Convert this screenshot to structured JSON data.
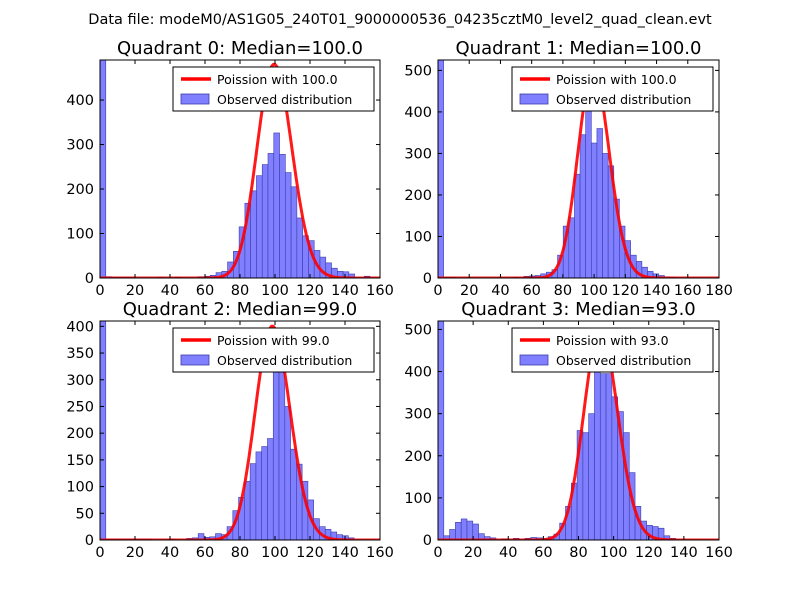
{
  "figure": {
    "suptitle": "Data file: modeM0/AS1G05_240T01_9000000536_04235cztM0_level2_quad_clean.evt"
  },
  "style": {
    "bar_fill": "#7f7fff",
    "bar_edge": "#3c3caa",
    "poisson_color": "#ff0000"
  },
  "chart_data": [
    {
      "type": "bar",
      "title": "Quadrant 0: Median=100.0",
      "xlim": [
        0,
        160
      ],
      "ylim": [
        0,
        490
      ],
      "xticks": [
        0,
        20,
        40,
        60,
        80,
        100,
        120,
        140,
        160
      ],
      "yticks": [
        0,
        100,
        200,
        300,
        400
      ],
      "bin_width": 3.3,
      "bins": [
        [
          0,
          490
        ],
        [
          3.3,
          3
        ],
        [
          6.6,
          2
        ],
        [
          9.9,
          2
        ],
        [
          13.2,
          2
        ],
        [
          16.5,
          2
        ],
        [
          33,
          2
        ],
        [
          43,
          2
        ],
        [
          56,
          3
        ],
        [
          60,
          4
        ],
        [
          63,
          6
        ],
        [
          66.3,
          12
        ],
        [
          69.6,
          15
        ],
        [
          72.9,
          36
        ],
        [
          76.2,
          60
        ],
        [
          79.5,
          115
        ],
        [
          82.8,
          168
        ],
        [
          86.1,
          196
        ],
        [
          89.4,
          230
        ],
        [
          92.7,
          255
        ],
        [
          96,
          280
        ],
        [
          99.3,
          326
        ],
        [
          102.6,
          278
        ],
        [
          105.9,
          237
        ],
        [
          109.2,
          205
        ],
        [
          112.5,
          135
        ],
        [
          115.8,
          95
        ],
        [
          119.1,
          84
        ],
        [
          122.4,
          62
        ],
        [
          125.7,
          47
        ],
        [
          129,
          34
        ],
        [
          132.3,
          22
        ],
        [
          135.6,
          15
        ],
        [
          138.9,
          14
        ],
        [
          142.2,
          9
        ],
        [
          151,
          4
        ]
      ],
      "legend": {
        "poisson": "Poission with 100.0",
        "observed": "Observed distribution",
        "location": "upper right"
      },
      "poisson": {
        "mean": 100.0,
        "scale": 480
      }
    },
    {
      "type": "bar",
      "title": "Quadrant 1: Median=100.0",
      "xlim": [
        0,
        180
      ],
      "ylim": [
        0,
        525
      ],
      "xticks": [
        0,
        20,
        40,
        60,
        80,
        100,
        120,
        140,
        160,
        180
      ],
      "yticks": [
        0,
        100,
        200,
        300,
        400,
        500
      ],
      "bin_width": 3.6,
      "bins": [
        [
          0,
          525
        ],
        [
          3.6,
          2
        ],
        [
          7.2,
          2
        ],
        [
          48,
          2
        ],
        [
          55,
          4
        ],
        [
          58.6,
          5
        ],
        [
          62.2,
          6
        ],
        [
          65.8,
          10
        ],
        [
          69.4,
          14
        ],
        [
          73,
          20
        ],
        [
          76.6,
          55
        ],
        [
          80.2,
          125
        ],
        [
          83.8,
          145
        ],
        [
          87.4,
          250
        ],
        [
          91,
          345
        ],
        [
          94.6,
          420
        ],
        [
          98.2,
          325
        ],
        [
          101.8,
          360
        ],
        [
          105.4,
          300
        ],
        [
          109,
          270
        ],
        [
          112.6,
          190
        ],
        [
          116.2,
          125
        ],
        [
          119.8,
          90
        ],
        [
          123.4,
          55
        ],
        [
          127,
          40
        ],
        [
          130.6,
          26
        ],
        [
          134.2,
          16
        ],
        [
          137.8,
          10
        ],
        [
          141.4,
          6
        ],
        [
          145,
          3
        ],
        [
          148.6,
          2
        ]
      ],
      "legend": {
        "poisson": "Poission with 100.0",
        "observed": "Observed distribution",
        "location": "upper right"
      },
      "poisson": {
        "mean": 100.0,
        "scale": 500
      }
    },
    {
      "type": "bar",
      "title": "Quadrant 2: Median=99.0",
      "xlim": [
        0,
        160
      ],
      "ylim": [
        0,
        410
      ],
      "xticks": [
        0,
        20,
        40,
        60,
        80,
        100,
        120,
        140,
        160
      ],
      "yticks": [
        0,
        50,
        100,
        150,
        200,
        250,
        300,
        350,
        400
      ],
      "bin_width": 3.3,
      "bins": [
        [
          0,
          410
        ],
        [
          3.3,
          2
        ],
        [
          6.6,
          2
        ],
        [
          9.9,
          2
        ],
        [
          13.2,
          2
        ],
        [
          16.5,
          2
        ],
        [
          19.8,
          2
        ],
        [
          23.1,
          2
        ],
        [
          26.4,
          2
        ],
        [
          39.6,
          2
        ],
        [
          49.5,
          3
        ],
        [
          52.8,
          4
        ],
        [
          56.1,
          12
        ],
        [
          59.4,
          5
        ],
        [
          62.7,
          6
        ],
        [
          66,
          12
        ],
        [
          69.3,
          10
        ],
        [
          72.6,
          25
        ],
        [
          75.9,
          55
        ],
        [
          79.2,
          80
        ],
        [
          82.5,
          110
        ],
        [
          85.8,
          143
        ],
        [
          89.1,
          165
        ],
        [
          92.4,
          175
        ],
        [
          95.7,
          190
        ],
        [
          99,
          343
        ],
        [
          102.3,
          330
        ],
        [
          105.6,
          250
        ],
        [
          108.9,
          170
        ],
        [
          112.2,
          142
        ],
        [
          115.5,
          110
        ],
        [
          118.8,
          75
        ],
        [
          122.1,
          40
        ],
        [
          125.4,
          25
        ],
        [
          128.7,
          20
        ],
        [
          132,
          15
        ],
        [
          135.3,
          10
        ],
        [
          138.6,
          8
        ],
        [
          141.9,
          4
        ]
      ],
      "legend": {
        "poisson": "Poission with 99.0",
        "observed": "Observed distribution",
        "location": "upper right"
      },
      "poisson": {
        "mean": 99.0,
        "scale": 400
      }
    },
    {
      "type": "bar",
      "title": "Quadrant 3: Median=93.0",
      "xlim": [
        0,
        160
      ],
      "ylim": [
        0,
        520
      ],
      "xticks": [
        0,
        20,
        40,
        60,
        80,
        100,
        120,
        140,
        160
      ],
      "yticks": [
        0,
        100,
        200,
        300,
        400,
        500
      ],
      "bin_width": 3.3,
      "bins": [
        [
          0,
          520
        ],
        [
          3.3,
          10
        ],
        [
          6.6,
          25
        ],
        [
          9.9,
          42
        ],
        [
          13.2,
          50
        ],
        [
          16.5,
          45
        ],
        [
          19.8,
          38
        ],
        [
          23.1,
          15
        ],
        [
          26.4,
          8
        ],
        [
          29.7,
          5
        ],
        [
          36.3,
          3
        ],
        [
          42.9,
          4
        ],
        [
          49.5,
          4
        ],
        [
          52.8,
          6
        ],
        [
          56.1,
          5
        ],
        [
          59.4,
          4
        ],
        [
          62.7,
          8
        ],
        [
          66,
          14
        ],
        [
          69.3,
          40
        ],
        [
          72.6,
          80
        ],
        [
          75.9,
          135
        ],
        [
          79.2,
          260
        ],
        [
          82.5,
          255
        ],
        [
          85.8,
          300
        ],
        [
          89.1,
          400
        ],
        [
          92.4,
          395
        ],
        [
          95.7,
          395
        ],
        [
          99,
          340
        ],
        [
          102.3,
          305
        ],
        [
          105.6,
          255
        ],
        [
          108.9,
          160
        ],
        [
          112.2,
          80
        ],
        [
          115.5,
          45
        ],
        [
          118.8,
          35
        ],
        [
          122.1,
          32
        ],
        [
          125.4,
          28
        ],
        [
          128.7,
          10
        ],
        [
          132,
          4
        ]
      ],
      "legend": {
        "poisson": "Poission with 93.0",
        "observed": "Observed distribution",
        "location": "upper right"
      },
      "poisson": {
        "mean": 93.0,
        "scale": 500
      }
    }
  ]
}
